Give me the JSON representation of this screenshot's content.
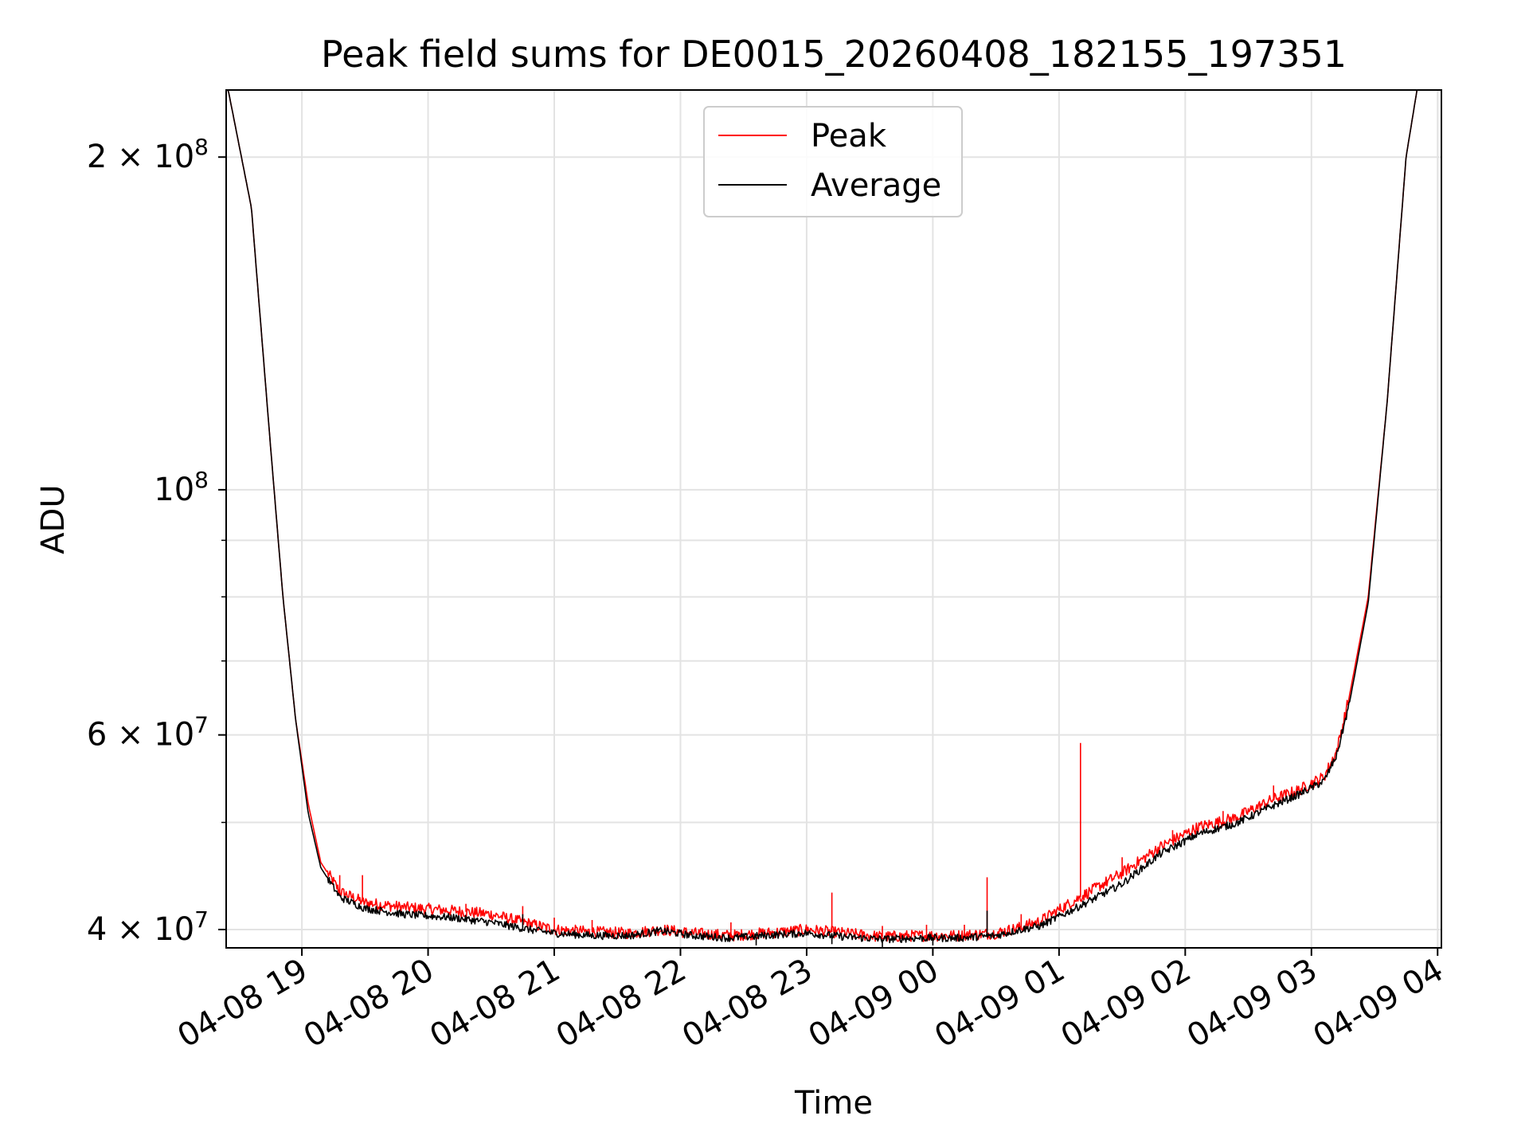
{
  "chart_data": {
    "type": "line",
    "title": "Peak field sums for DE0015_20260408_182155_197351",
    "xlabel": "Time",
    "ylabel": "ADU",
    "yscale": "log",
    "ylim": [
      38500000,
      230000000
    ],
    "xlim_hours": [
      18.4,
      28.03
    ],
    "grid": true,
    "legend_position": "upper center",
    "x_ticks": [
      {
        "hour": 19,
        "label": "04-08 19"
      },
      {
        "hour": 20,
        "label": "04-08 20"
      },
      {
        "hour": 21,
        "label": "04-08 21"
      },
      {
        "hour": 22,
        "label": "04-08 22"
      },
      {
        "hour": 23,
        "label": "04-08 23"
      },
      {
        "hour": 24,
        "label": "04-09 00"
      },
      {
        "hour": 25,
        "label": "04-09 01"
      },
      {
        "hour": 26,
        "label": "04-09 02"
      },
      {
        "hour": 27,
        "label": "04-09 03"
      },
      {
        "hour": 28,
        "label": "04-09 04"
      }
    ],
    "y_ticks": [
      {
        "value": 40000000,
        "mantissa": "4",
        "exp": "7",
        "label": "4 × 10^7"
      },
      {
        "value": 60000000,
        "mantissa": "6",
        "exp": "7",
        "label": "6 × 10^7"
      },
      {
        "value": 100000000,
        "mantissa": "",
        "exp": "8",
        "label": "10^8"
      },
      {
        "value": 200000000,
        "mantissa": "2",
        "exp": "8",
        "label": "2 × 10^8"
      }
    ],
    "y_minor_ticks": [
      50000000,
      70000000,
      80000000,
      90000000
    ],
    "series": [
      {
        "name": "Peak",
        "color": "#ff0000",
        "points": [
          [
            18.4,
            235000000
          ],
          [
            18.6,
            180000000
          ],
          [
            18.75,
            110000000
          ],
          [
            18.85,
            80000000
          ],
          [
            18.95,
            62000000
          ],
          [
            19.05,
            52000000
          ],
          [
            19.15,
            46000000
          ],
          [
            19.3,
            43300000
          ],
          [
            19.5,
            42300000
          ],
          [
            19.8,
            41900000
          ],
          [
            20.2,
            41600000
          ],
          [
            20.5,
            41300000
          ],
          [
            20.8,
            40500000
          ],
          [
            21.0,
            40000000
          ],
          [
            21.3,
            39800000
          ],
          [
            21.6,
            39700000
          ],
          [
            21.85,
            40000000
          ],
          [
            22.1,
            39700000
          ],
          [
            22.4,
            39500000
          ],
          [
            22.8,
            39800000
          ],
          [
            23.0,
            40000000
          ],
          [
            23.3,
            39700000
          ],
          [
            23.6,
            39400000
          ],
          [
            23.9,
            39500000
          ],
          [
            24.2,
            39500000
          ],
          [
            24.5,
            39700000
          ],
          [
            24.7,
            40200000
          ],
          [
            24.85,
            40700000
          ],
          [
            25.0,
            41700000
          ],
          [
            25.2,
            43000000
          ],
          [
            25.5,
            45000000
          ],
          [
            25.8,
            47500000
          ],
          [
            26.1,
            49500000
          ],
          [
            26.4,
            50500000
          ],
          [
            26.7,
            52500000
          ],
          [
            26.9,
            53500000
          ],
          [
            27.1,
            55000000
          ],
          [
            27.2,
            58000000
          ],
          [
            27.3,
            65000000
          ],
          [
            27.45,
            80000000
          ],
          [
            27.6,
            120000000
          ],
          [
            27.75,
            200000000
          ],
          [
            27.85,
            235000000
          ]
        ],
        "spikes": [
          [
            19.3,
            44800000
          ],
          [
            19.48,
            44800000
          ],
          [
            20.3,
            42200000
          ],
          [
            20.75,
            42000000
          ],
          [
            21.0,
            41000000
          ],
          [
            21.3,
            40800000
          ],
          [
            22.4,
            40600000
          ],
          [
            23.2,
            43200000
          ],
          [
            23.6,
            40300000
          ],
          [
            23.95,
            40400000
          ],
          [
            24.25,
            40400000
          ],
          [
            24.43,
            44600000
          ],
          [
            24.7,
            41300000
          ],
          [
            25.17,
            59000000
          ],
          [
            25.5,
            46500000
          ],
          [
            25.9,
            49200000
          ],
          [
            26.3,
            51200000
          ],
          [
            26.7,
            54000000
          ]
        ]
      },
      {
        "name": "Average",
        "color": "#000000",
        "points": [
          [
            18.4,
            235000000
          ],
          [
            18.6,
            180000000
          ],
          [
            18.75,
            110000000
          ],
          [
            18.85,
            80000000
          ],
          [
            18.95,
            62000000
          ],
          [
            19.05,
            51000000
          ],
          [
            19.15,
            45500000
          ],
          [
            19.3,
            42800000
          ],
          [
            19.5,
            41800000
          ],
          [
            19.8,
            41300000
          ],
          [
            20.2,
            41000000
          ],
          [
            20.5,
            40600000
          ],
          [
            20.8,
            40000000
          ],
          [
            21.0,
            39700000
          ],
          [
            21.3,
            39500000
          ],
          [
            21.6,
            39500000
          ],
          [
            21.85,
            39900000
          ],
          [
            22.1,
            39500000
          ],
          [
            22.4,
            39300000
          ],
          [
            22.8,
            39600000
          ],
          [
            23.0,
            39700000
          ],
          [
            23.3,
            39400000
          ],
          [
            23.6,
            39200000
          ],
          [
            23.9,
            39300000
          ],
          [
            24.2,
            39300000
          ],
          [
            24.5,
            39500000
          ],
          [
            24.7,
            40000000
          ],
          [
            24.85,
            40300000
          ],
          [
            25.0,
            41100000
          ],
          [
            25.2,
            42200000
          ],
          [
            25.5,
            44000000
          ],
          [
            25.8,
            46800000
          ],
          [
            26.1,
            48800000
          ],
          [
            26.4,
            49900000
          ],
          [
            26.7,
            51800000
          ],
          [
            26.9,
            53000000
          ],
          [
            27.1,
            54500000
          ],
          [
            27.2,
            57500000
          ],
          [
            27.3,
            64000000
          ],
          [
            27.45,
            79000000
          ],
          [
            27.6,
            120000000
          ],
          [
            27.75,
            200000000
          ],
          [
            27.85,
            235000000
          ]
        ],
        "spikes": [
          [
            20.75,
            41300000
          ],
          [
            24.43,
            41600000
          ],
          [
            22.6,
            38700000
          ],
          [
            23.2,
            38800000
          ],
          [
            23.6,
            38500000
          ],
          [
            24.0,
            38700000
          ]
        ]
      }
    ]
  }
}
